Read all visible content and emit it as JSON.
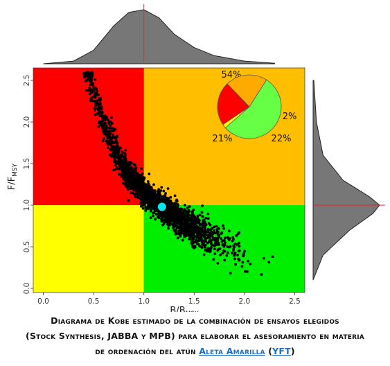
{
  "chart_data": {
    "type": "scatter",
    "subtype": "kobe_plot",
    "xlabel": "B/B",
    "xlabel_sub": "MSY",
    "ylabel": "F/F",
    "ylabel_sub": "MSY",
    "xlim": [
      -0.1,
      2.6
    ],
    "ylim": [
      -0.05,
      2.65
    ],
    "x_ticks": [
      0.0,
      0.5,
      1.0,
      1.5,
      2.0,
      2.5
    ],
    "y_ticks": [
      0.0,
      0.5,
      1.0,
      1.5,
      2.0,
      2.5
    ],
    "x_tick_labels": [
      "0.0",
      "0.5",
      "1.0",
      "1.5",
      "2.0",
      "2.5"
    ],
    "y_tick_labels": [
      "0.0",
      "0.5",
      "1.0",
      "1.5",
      "2.0",
      "2.5"
    ],
    "reference_lines": {
      "x": 1.0,
      "y": 1.0
    },
    "quadrants": [
      {
        "name": "overfished-overfishing",
        "x": [
          -0.1,
          1.0
        ],
        "y": [
          1.0,
          2.65
        ],
        "color": "#ff0000"
      },
      {
        "name": "not-overfished-overfishing",
        "x": [
          1.0,
          2.6
        ],
        "y": [
          1.0,
          2.65
        ],
        "color": "#ffbf00"
      },
      {
        "name": "overfished-no-overfishing",
        "x": [
          -0.1,
          1.0
        ],
        "y": [
          -0.05,
          1.0
        ],
        "color": "#ffff00"
      },
      {
        "name": "healthy",
        "x": [
          1.0,
          2.6
        ],
        "y": [
          -0.05,
          1.0
        ],
        "color": "#00ee00"
      }
    ],
    "point_estimate": {
      "x": 1.18,
      "y": 0.98,
      "color": "#00e5ee"
    },
    "cloud_shape": {
      "description": "scatter of thousands of points; band curving from upper-left to lower-right",
      "centerline": [
        [
          0.45,
          2.6
        ],
        [
          0.6,
          1.95
        ],
        [
          0.8,
          1.45
        ],
        [
          1.0,
          1.15
        ],
        [
          1.2,
          0.95
        ],
        [
          1.5,
          0.72
        ],
        [
          1.8,
          0.52
        ],
        [
          2.1,
          0.32
        ],
        [
          2.35,
          0.18
        ]
      ],
      "scatter_color": "#000000"
    },
    "pie": {
      "slices": [
        {
          "label": "54%",
          "value": 54,
          "color": "#66ff44"
        },
        {
          "label": "2%",
          "value": 2,
          "color": "#ffff00"
        },
        {
          "label": "22%",
          "value": 22,
          "color": "#ff0000"
        },
        {
          "label": "21%",
          "value": 21,
          "color": "#ffaa00"
        }
      ]
    },
    "marginal_density_x": {
      "points": [
        [
          0.0,
          0.0
        ],
        [
          0.3,
          0.05
        ],
        [
          0.5,
          0.25
        ],
        [
          0.7,
          0.7
        ],
        [
          0.85,
          0.95
        ],
        [
          1.0,
          1.0
        ],
        [
          1.15,
          0.85
        ],
        [
          1.3,
          0.55
        ],
        [
          1.5,
          0.3
        ],
        [
          1.7,
          0.15
        ],
        [
          2.0,
          0.05
        ],
        [
          2.3,
          0.01
        ]
      ]
    },
    "marginal_density_y": {
      "points": [
        [
          0.1,
          0.0
        ],
        [
          0.4,
          0.15
        ],
        [
          0.7,
          0.55
        ],
        [
          0.9,
          0.9
        ],
        [
          1.0,
          1.0
        ],
        [
          1.1,
          0.85
        ],
        [
          1.3,
          0.45
        ],
        [
          1.6,
          0.15
        ],
        [
          2.0,
          0.05
        ],
        [
          2.5,
          0.01
        ]
      ]
    },
    "grid": false
  },
  "caption": {
    "line1": "Diagrama de Kobe estimado de la combinación de ensayos elegidos",
    "line2": "(Stock Synthesis, JABBA y MPB) para elaborar el asesoramiento en materia",
    "line3_prefix": "de ordenación del atún ",
    "link1": "Aleta Amarilla",
    "link2": "YFT",
    "open_paren": " (",
    "close_paren": ")"
  }
}
